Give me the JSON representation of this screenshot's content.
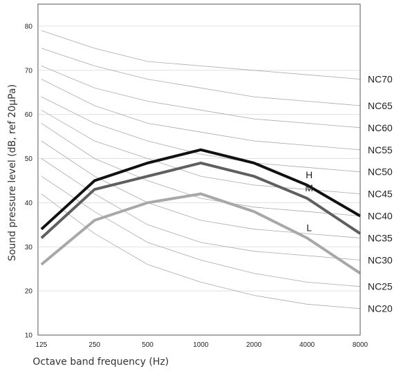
{
  "chart_data": {
    "type": "line",
    "xlabel": "Octave band frequency (Hz)",
    "ylabel": "Sound pressure level (dB, ref 20μPa)",
    "x": [
      "125",
      "250",
      "500",
      "1000",
      "2000",
      "4000",
      "8000"
    ],
    "ylim": [
      10,
      85
    ],
    "yticks": [
      "10",
      "20",
      "30",
      "40",
      "50",
      "60",
      "70",
      "80"
    ],
    "grid": true,
    "nc_curves": [
      {
        "name": "NC20",
        "values": [
          42,
          33,
          26,
          22,
          19,
          17,
          16
        ]
      },
      {
        "name": "NC25",
        "values": [
          46,
          38,
          31,
          27,
          24,
          22,
          21
        ]
      },
      {
        "name": "NC30",
        "values": [
          50,
          42,
          35,
          31,
          29,
          28,
          27
        ]
      },
      {
        "name": "NC35",
        "values": [
          54,
          46,
          40,
          36,
          34,
          33,
          32
        ]
      },
      {
        "name": "NC40",
        "values": [
          58,
          50,
          45,
          41,
          39,
          38,
          37
        ]
      },
      {
        "name": "NC45",
        "values": [
          61,
          54,
          50,
          46,
          44,
          43,
          42
        ]
      },
      {
        "name": "NC50",
        "values": [
          64,
          58,
          54,
          51,
          49,
          48,
          47
        ]
      },
      {
        "name": "NC55",
        "values": [
          68,
          62,
          58,
          56,
          54,
          53,
          52
        ]
      },
      {
        "name": "NC60",
        "values": [
          71,
          66,
          63,
          61,
          59,
          58,
          57
        ]
      },
      {
        "name": "NC65",
        "values": [
          75,
          71,
          68,
          66,
          64,
          63,
          62
        ]
      },
      {
        "name": "NC70",
        "values": [
          79,
          75,
          72,
          71,
          70,
          69,
          68
        ]
      }
    ],
    "series": [
      {
        "name": "H",
        "color": "#111111",
        "values": [
          34,
          45,
          49,
          52,
          49,
          44,
          37
        ]
      },
      {
        "name": "M",
        "color": "#5f5f5f",
        "values": [
          32,
          43,
          46,
          49,
          46,
          41,
          33
        ]
      },
      {
        "name": "L",
        "color": "#a8a8a8",
        "values": [
          26,
          36,
          40,
          42,
          38,
          32,
          24
        ]
      }
    ]
  }
}
